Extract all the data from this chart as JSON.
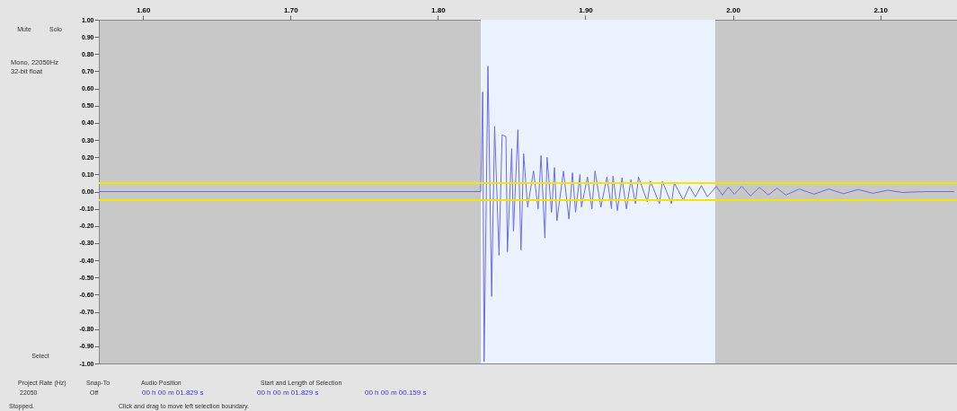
{
  "chart_data": {
    "type": "line",
    "x": [
      1.57,
      1.829,
      1.8303,
      1.8313,
      1.8339,
      1.8364,
      1.8384,
      1.8414,
      1.8435,
      1.8461,
      1.8471,
      1.85,
      1.8512,
      1.8542,
      1.8563,
      1.8581,
      1.8608,
      1.8648,
      1.8679,
      1.8699,
      1.8725,
      1.874,
      1.877,
      1.879,
      1.8807,
      1.8851,
      1.8888,
      1.8912,
      1.8933,
      1.8963,
      1.8973,
      1.9014,
      1.9044,
      1.9065,
      1.9105,
      1.9146,
      1.9177,
      1.9187,
      1.9217,
      1.9248,
      1.9278,
      1.9309,
      1.9339,
      1.936,
      1.942,
      1.9441,
      1.9502,
      1.9522,
      1.9583,
      1.9603,
      1.9664,
      1.9705,
      1.9746,
      1.9786,
      1.9827,
      1.9888,
      1.9929,
      1.9969,
      2.001,
      2.006,
      2.012,
      2.018,
      2.024,
      2.03,
      2.036,
      2.045,
      2.055,
      2.065,
      2.075,
      2.085,
      2.095,
      2.105,
      2.115,
      2.13,
      2.15
    ],
    "series": [
      {
        "color": "#6a6ee0",
        "values": [
          0,
          0,
          0.58,
          -0.99,
          0.73,
          -0.61,
          0.38,
          -0.37,
          0.33,
          0.32,
          -0.35,
          0.25,
          -0.23,
          0.36,
          -0.34,
          0.22,
          -0.09,
          0.12,
          -0.1,
          0.21,
          -0.27,
          0.2,
          -0.12,
          0.14,
          -0.17,
          0.12,
          -0.16,
          0.11,
          -0.12,
          0.1,
          -0.09,
          0.085,
          -0.1,
          0.12,
          -0.09,
          0.085,
          -0.1,
          0.09,
          -0.11,
          0.08,
          -0.1,
          0.07,
          -0.07,
          0.085,
          -0.06,
          0.06,
          -0.07,
          0.06,
          -0.07,
          0.05,
          -0.05,
          0.03,
          -0.03,
          0.035,
          -0.03,
          0.03,
          -0.02,
          0.025,
          -0.015,
          0.03,
          -0.025,
          0.025,
          -0.02,
          0.02,
          -0.02,
          0.015,
          -0.015,
          0.015,
          -0.012,
          0.012,
          -0.01,
          0.008,
          -0.005,
          0,
          0
        ]
      }
    ],
    "xlim": [
      1.57,
      2.152
    ],
    "xticks": [
      {
        "value": 1.6,
        "label": "1.60"
      },
      {
        "value": 1.7,
        "label": "1.70"
      },
      {
        "value": 1.8,
        "label": "1.80"
      },
      {
        "value": 1.9,
        "label": "1.90"
      },
      {
        "value": 2.0,
        "label": "2.00"
      },
      {
        "value": 2.1,
        "label": "2.10"
      }
    ],
    "ylim": [
      -1,
      1
    ],
    "yticks": [
      {
        "value": 1,
        "label": "1.00"
      },
      {
        "value": 0.9,
        "label": "0.90"
      },
      {
        "value": 0.8,
        "label": "0.80"
      },
      {
        "value": 0.7,
        "label": "0.70"
      },
      {
        "value": 0.6,
        "label": "0.60"
      },
      {
        "value": 0.5,
        "label": "0.50"
      },
      {
        "value": 0.4,
        "label": "0.40"
      },
      {
        "value": 0.3,
        "label": "0.30"
      },
      {
        "value": 0.2,
        "label": "0.20"
      },
      {
        "value": 0.1,
        "label": "0.10"
      },
      {
        "value": 0,
        "label": "0.00"
      },
      {
        "value": -0.1,
        "label": "-0.10"
      },
      {
        "value": -0.2,
        "label": "-0.20"
      },
      {
        "value": -0.3,
        "label": "-0.30"
      },
      {
        "value": -0.4,
        "label": "-0.40"
      },
      {
        "value": -0.5,
        "label": "-0.50"
      },
      {
        "value": -0.6,
        "label": "-0.60"
      },
      {
        "value": -0.7,
        "label": "-0.70"
      },
      {
        "value": -0.8,
        "label": "-0.80"
      },
      {
        "value": -0.9,
        "label": "-0.90"
      },
      {
        "value": -1,
        "label": "-1.00"
      }
    ],
    "bands": [
      {
        "axis": "x",
        "from": 1.829,
        "to": 1.988,
        "color": "#edf3fe"
      }
    ],
    "ref_lines": [
      {
        "axis": "y",
        "value": 0.05,
        "color": "#f0e800"
      },
      {
        "axis": "y",
        "value": -0.05,
        "color": "#f0e800"
      }
    ],
    "annotations": [
      "Mute",
      "Solo",
      "Mono, 22050Hz",
      "32-bit float",
      "Select",
      "Project Rate (Hz)",
      "22050",
      "Snap-To",
      "Off",
      "Audio Position",
      "00 h 00 m 01.829 s",
      "Start and Length of Selection",
      "00 h 00 m 01.829 s",
      "00 h 00 m 00.159 s",
      "Stopped.",
      "Click and drag to move left selection boundary."
    ]
  }
}
